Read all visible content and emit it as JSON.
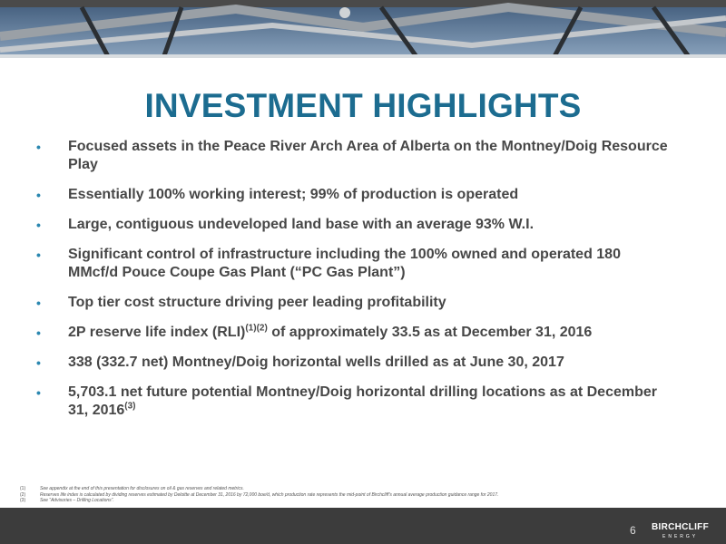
{
  "header": {
    "title": "INVESTMENT HIGHLIGHTS"
  },
  "bullets": [
    [
      {
        "text": "Focused assets in the Peace River Arch Area of Alberta on the Montney/Doig Resource Play"
      }
    ],
    [
      {
        "text": "Essentially 100% working interest; 99% of production is operated"
      }
    ],
    [
      {
        "text": "Large, contiguous undeveloped land base with an average 93% W.I."
      }
    ],
    [
      {
        "text": "Significant control of infrastructure including the 100% owned and operated 180 MMcf/d Pouce Coupe Gas Plant (“PC Gas Plant”)"
      }
    ],
    [
      {
        "text": "Top tier cost structure driving peer leading profitability"
      }
    ],
    [
      {
        "text": "2P reserve life index (RLI)"
      },
      {
        "sup": "(1)(2)"
      },
      {
        "text": " of approximately 33.5 as at December 31, 2016"
      }
    ],
    [
      {
        "text": "338 (332.7 net) Montney/Doig horizontal wells drilled as at June 30, 2017"
      }
    ],
    [
      {
        "text": "5,703.1 net future potential Montney/Doig horizontal drilling locations as at December 31, 2016"
      },
      {
        "sup": "(3)"
      }
    ]
  ],
  "footnotes": [
    {
      "mark": "(1)",
      "text": "See appendix at the end of this presentation for disclosures on oil & gas reserves and related metrics."
    },
    {
      "mark": "(2)",
      "text": "Reserves life index is calculated by dividing reserves estimated by Deloitte at December 31, 2016 by 72,000 boe/d, which production rate represents the mid-point of Birchcliff's annual average production guidance range for 2017."
    },
    {
      "mark": "(3)",
      "text": "See “Advisories – Drilling Locations”."
    }
  ],
  "footer": {
    "page": "6",
    "logo": "BIRCHCLIFF",
    "logo_sub": "ENERGY"
  }
}
